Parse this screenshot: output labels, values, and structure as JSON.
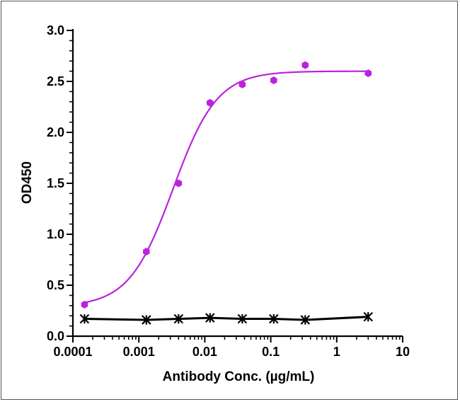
{
  "chart_data": {
    "type": "scatter",
    "xlabel": "Antibody Conc. (µg/mL)",
    "ylabel": "OD450",
    "x_scale": "log",
    "xlim": [
      0.0001,
      10
    ],
    "ylim": [
      0,
      3.0
    ],
    "x_ticks": [
      {
        "value": 0.0001,
        "label": "0.0001"
      },
      {
        "value": 0.001,
        "label": "0.001"
      },
      {
        "value": 0.01,
        "label": "0.01"
      },
      {
        "value": 0.1,
        "label": "0.1"
      },
      {
        "value": 1,
        "label": "1"
      },
      {
        "value": 10,
        "label": "10"
      }
    ],
    "y_ticks": [
      {
        "value": 0,
        "label": "0.0"
      },
      {
        "value": 0.5,
        "label": "0.5"
      },
      {
        "value": 1.0,
        "label": "1.0"
      },
      {
        "value": 1.5,
        "label": "1.5"
      },
      {
        "value": 2.0,
        "label": "2.0"
      },
      {
        "value": 2.5,
        "label": "2.5"
      },
      {
        "value": 3.0,
        "label": "3.0"
      }
    ],
    "grid": false,
    "legend": "none",
    "series": [
      {
        "color": "#bb22dd",
        "marker": "hexagon",
        "x": [
          0.00015,
          0.0013,
          0.004,
          0.012,
          0.037,
          0.111,
          0.333,
          3.0
        ],
        "y": [
          0.31,
          0.83,
          1.5,
          2.29,
          2.47,
          2.51,
          2.66,
          2.58
        ],
        "fit": {
          "bottom": 0.29,
          "top": 2.6,
          "ec50": 0.0033,
          "hill": 1.3
        }
      },
      {
        "color": "#000000",
        "marker": "asterisk",
        "x": [
          0.00015,
          0.0013,
          0.004,
          0.012,
          0.037,
          0.111,
          0.333,
          3.0
        ],
        "y": [
          0.17,
          0.16,
          0.17,
          0.18,
          0.17,
          0.17,
          0.16,
          0.19
        ]
      }
    ]
  }
}
